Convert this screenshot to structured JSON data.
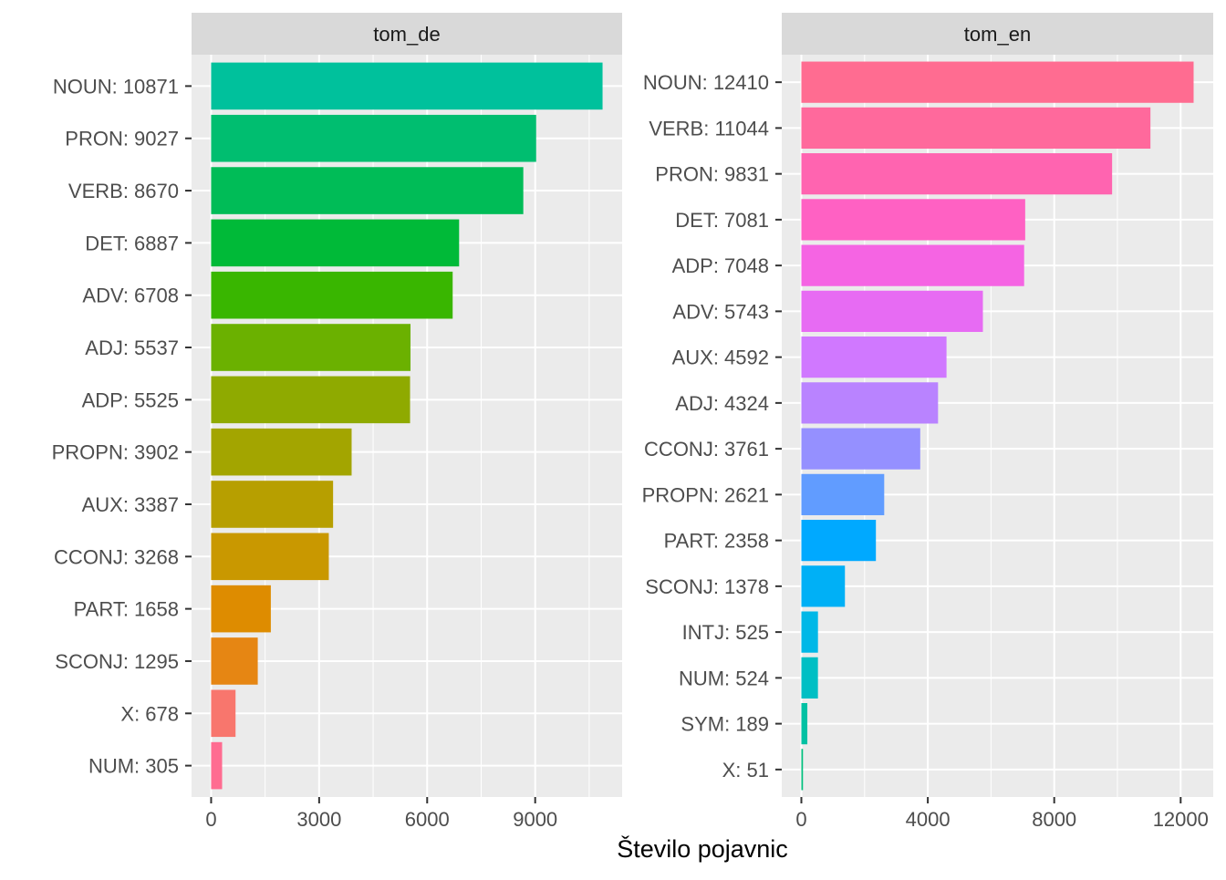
{
  "chart_data": [
    {
      "type": "bar",
      "orientation": "horizontal",
      "facet": "tom_de",
      "categories": [
        "NOUN: 10871",
        "PRON: 9027",
        "VERB: 8670",
        "DET: 6887",
        "ADV: 6708",
        "ADJ: 5537",
        "ADP: 5525",
        "PROPN: 3902",
        "AUX: 3387",
        "CCONJ: 3268",
        "PART: 1658",
        "SCONJ: 1295",
        "X: 678",
        "NUM: 305"
      ],
      "values": [
        10871,
        9027,
        8670,
        6887,
        6708,
        5537,
        5525,
        3902,
        3387,
        3268,
        1658,
        1295,
        678,
        305
      ],
      "colors": [
        "#00C19C",
        "#00BE70",
        "#00BC57",
        "#00BA38",
        "#39B600",
        "#6BB100",
        "#8FAA00",
        "#A3A500",
        "#B79F00",
        "#C99800",
        "#DE8C00",
        "#E68613",
        "#F8766D",
        "#FF6C91"
      ],
      "xticks": [
        0,
        3000,
        6000,
        9000
      ],
      "xlim": [
        -543.5,
        11414.5
      ],
      "grid": true
    },
    {
      "type": "bar",
      "orientation": "horizontal",
      "facet": "tom_en",
      "categories": [
        "NOUN: 12410",
        "VERB: 11044",
        "PRON: 9831",
        "DET: 7081",
        "ADP: 7048",
        "ADV: 5743",
        "AUX: 4592",
        "ADJ: 4324",
        "CCONJ: 3761",
        "PROPN: 2621",
        "PART: 2358",
        "SCONJ: 1378",
        "INTJ: 525",
        "NUM: 524",
        "SYM: 189",
        "X: 51"
      ],
      "values": [
        12410,
        11044,
        9831,
        7081,
        7048,
        5743,
        4592,
        4324,
        3761,
        2621,
        2358,
        1378,
        525,
        524,
        189,
        51
      ],
      "colors": [
        "#FF6C91",
        "#FF699C",
        "#FF64B0",
        "#FF61C3",
        "#F564E3",
        "#E76BF3",
        "#D078FF",
        "#B983FF",
        "#9590FF",
        "#619CFF",
        "#00A9FF",
        "#00B0F6",
        "#00B8E7",
        "#00BFC4",
        "#00C1A3",
        "#00BF7D"
      ],
      "xticks": [
        0,
        4000,
        8000,
        12000
      ],
      "xlim": [
        -620.5,
        13030.5
      ],
      "grid": true
    }
  ],
  "xlabel": "Število pojavnic",
  "ylabel": "",
  "legend": "none"
}
